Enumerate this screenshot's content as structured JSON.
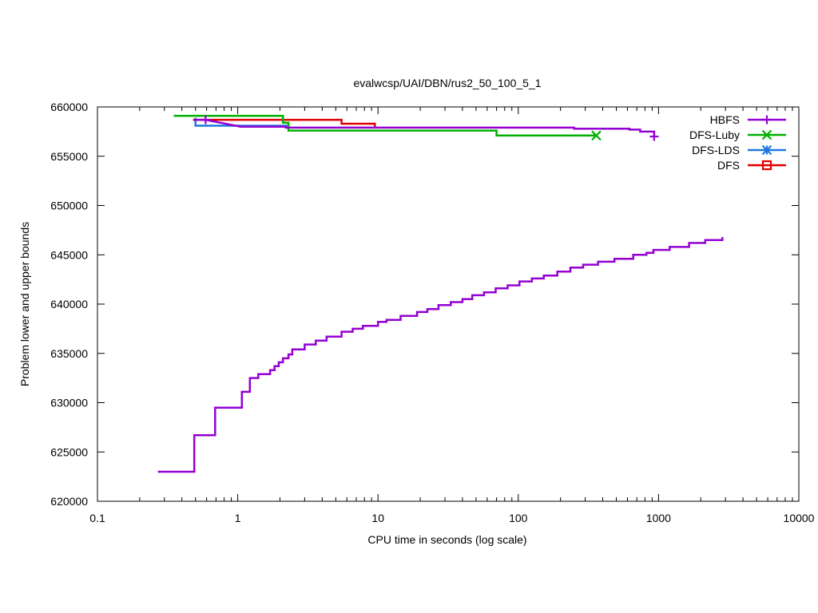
{
  "chart_data": {
    "type": "line",
    "title": "evalwcsp/UAI/DBN/rus2_50_100_5_1",
    "xlabel": "CPU time in seconds (log scale)",
    "ylabel": "Problem lower and upper bounds",
    "xscale": "log",
    "xlim": [
      0.1,
      10000
    ],
    "ylim": [
      620000,
      660000
    ],
    "xticks": [
      0.1,
      1,
      10,
      100,
      1000,
      10000
    ],
    "xtick_labels": [
      "0.1",
      "1",
      "10",
      "100",
      "1000",
      "10000"
    ],
    "yticks": [
      620000,
      625000,
      630000,
      635000,
      640000,
      645000,
      650000,
      655000,
      660000
    ],
    "ytick_labels": [
      "620000",
      "625000",
      "630000",
      "635000",
      "640000",
      "645000",
      "650000",
      "655000",
      "660000"
    ],
    "grid": false,
    "legend_position": "top-right",
    "series": [
      {
        "name": "HBFS",
        "color": "#9400d3",
        "marker": "plus",
        "steps": [
          [
            [
              0.27,
              623000
            ],
            [
              0.49,
              623000
            ],
            [
              0.49,
              626700
            ],
            [
              0.69,
              626700
            ],
            [
              0.69,
              629500
            ],
            [
              1.07,
              629500
            ],
            [
              1.07,
              631100
            ],
            [
              1.22,
              631100
            ],
            [
              1.22,
              632500
            ],
            [
              1.4,
              632500
            ],
            [
              1.4,
              632900
            ],
            [
              1.7,
              632900
            ],
            [
              1.7,
              633300
            ],
            [
              1.83,
              633300
            ],
            [
              1.83,
              633700
            ],
            [
              1.96,
              633700
            ],
            [
              1.96,
              634100
            ],
            [
              2.1,
              634100
            ],
            [
              2.1,
              634500
            ],
            [
              2.3,
              634500
            ],
            [
              2.3,
              634900
            ],
            [
              2.45,
              634900
            ],
            [
              2.45,
              635400
            ],
            [
              3.0,
              635400
            ],
            [
              3.0,
              635900
            ],
            [
              3.6,
              635900
            ],
            [
              3.6,
              636300
            ],
            [
              4.3,
              636300
            ],
            [
              4.3,
              636700
            ],
            [
              5.5,
              636700
            ],
            [
              5.5,
              637200
            ],
            [
              6.6,
              637200
            ],
            [
              6.6,
              637500
            ],
            [
              7.8,
              637500
            ],
            [
              7.8,
              637800
            ],
            [
              10.0,
              637800
            ],
            [
              10.0,
              638200
            ],
            [
              11.5,
              638200
            ],
            [
              11.5,
              638400
            ],
            [
              14.5,
              638400
            ],
            [
              14.5,
              638800
            ],
            [
              19.0,
              638800
            ],
            [
              19.0,
              639200
            ],
            [
              22.5,
              639200
            ],
            [
              22.5,
              639500
            ],
            [
              27.0,
              639500
            ],
            [
              27.0,
              639900
            ],
            [
              33.0,
              639900
            ],
            [
              33.0,
              640200
            ],
            [
              40.0,
              640200
            ],
            [
              40.0,
              640500
            ],
            [
              47.0,
              640500
            ],
            [
              47.0,
              640900
            ],
            [
              57.0,
              640900
            ],
            [
              57.0,
              641200
            ],
            [
              69.0,
              641200
            ],
            [
              69.0,
              641600
            ],
            [
              84.0,
              641600
            ],
            [
              84.0,
              641900
            ],
            [
              102.0,
              641900
            ],
            [
              102.0,
              642300
            ],
            [
              125.0,
              642300
            ],
            [
              125.0,
              642600
            ],
            [
              152.0,
              642600
            ],
            [
              152.0,
              642900
            ],
            [
              190.0,
              642900
            ],
            [
              190.0,
              643300
            ],
            [
              235.0,
              643300
            ],
            [
              235.0,
              643700
            ],
            [
              290.0,
              643700
            ],
            [
              290.0,
              644000
            ],
            [
              370.0,
              644000
            ],
            [
              370.0,
              644300
            ],
            [
              485.0,
              644300
            ],
            [
              485.0,
              644600
            ],
            [
              660.0,
              644600
            ],
            [
              660.0,
              645000
            ],
            [
              820.0,
              645000
            ],
            [
              820.0,
              645200
            ],
            [
              920.0,
              645200
            ],
            [
              920.0,
              645500
            ],
            [
              1200.0,
              645500
            ],
            [
              1200.0,
              645800
            ],
            [
              1650.0,
              645800
            ],
            [
              1650.0,
              646200
            ],
            [
              2150.0,
              646200
            ],
            [
              2150.0,
              646500
            ],
            [
              2850.0,
              646500
            ],
            [
              2850.0,
              646800
            ]
          ],
          [
            [
              0.49,
              658700
            ],
            [
              0.59,
              658700
            ],
            [
              1.05,
              658000
            ],
            [
              2.2,
              658000
            ],
            [
              2.2,
              657900
            ],
            [
              250.0,
              657900
            ],
            [
              250.0,
              657800
            ],
            [
              620.0,
              657800
            ],
            [
              620.0,
              657700
            ],
            [
              740.0,
              657700
            ],
            [
              740.0,
              657500
            ],
            [
              930.0,
              657500
            ],
            [
              930.0,
              657000
            ]
          ]
        ],
        "markers": [
          [
            0.59,
            658700
          ],
          [
            930.0,
            657000
          ]
        ]
      },
      {
        "name": "DFS-Luby",
        "color": "#00b000",
        "marker": "cross",
        "steps": [
          [
            [
              0.35,
              659100
            ],
            [
              2.1,
              659100
            ],
            [
              2.1,
              658400
            ],
            [
              2.3,
              658400
            ],
            [
              2.3,
              657600
            ],
            [
              70.0,
              657600
            ],
            [
              70.0,
              657100
            ],
            [
              360.0,
              657100
            ]
          ]
        ],
        "markers": [
          [
            360.0,
            657100
          ]
        ]
      },
      {
        "name": "DFS-LDS",
        "color": "#1f78e0",
        "marker": "star",
        "steps": [
          [
            [
              0.5,
              658900
            ],
            [
              0.5,
              658100
            ],
            [
              2.3,
              658100
            ],
            [
              2.3,
              657900
            ]
          ]
        ],
        "markers": []
      },
      {
        "name": "DFS",
        "color": "#e00000",
        "marker": "square",
        "steps": [
          [
            [
              0.48,
              658700
            ],
            [
              5.5,
              658700
            ],
            [
              5.5,
              658300
            ],
            [
              9.5,
              658300
            ],
            [
              9.5,
              658000
            ]
          ]
        ],
        "markers": []
      }
    ]
  }
}
